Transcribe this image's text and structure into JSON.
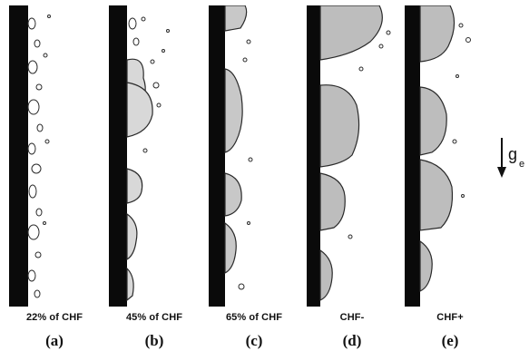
{
  "panels": [
    {
      "caption": "22% of CHF",
      "label": "(a)"
    },
    {
      "caption": "45% of CHF",
      "label": "(b)"
    },
    {
      "caption": "65% of CHF",
      "label": "(c)"
    },
    {
      "caption": "CHF-",
      "label": "(d)"
    },
    {
      "caption": "CHF+",
      "label": "(e)"
    }
  ],
  "gravity": {
    "symbol": "g",
    "subscript": "e",
    "arrow_icon": "down-arrow-icon"
  },
  "colors": {
    "wall": "#0a0a0a",
    "vapor_dark": "#2a2a2a",
    "vapor_mid": "#8a8a8a",
    "vapor_light": "#d8d8d8",
    "background": "#ffffff"
  }
}
